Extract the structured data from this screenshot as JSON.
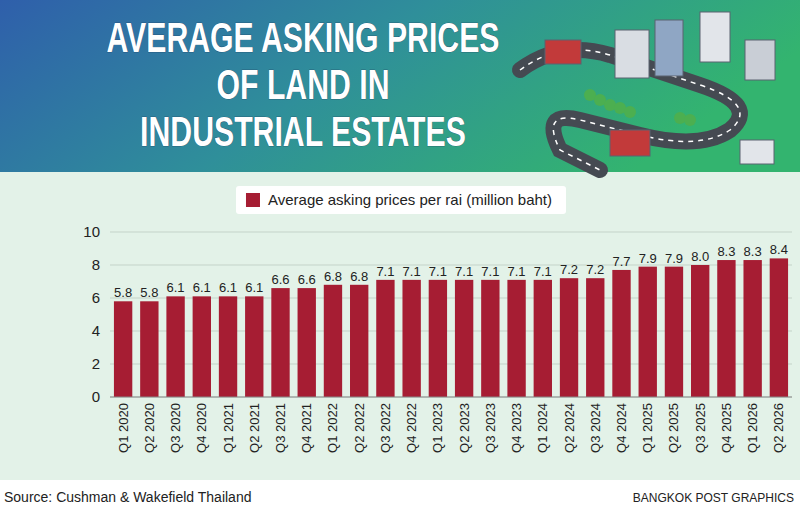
{
  "chart_data": {
    "type": "bar",
    "title": [
      "AVERAGE ASKING PRICES",
      "OF LAND IN",
      "INDUSTRIAL ESTATES"
    ],
    "categories": [
      "Q1 2020",
      "Q2 2020",
      "Q3 2020",
      "Q4 2020",
      "Q1 2021",
      "Q2 2021",
      "Q3 2021",
      "Q4 2021",
      "Q1 2022",
      "Q2 2022",
      "Q3 2022",
      "Q4 2022",
      "Q1 2023",
      "Q2 2023",
      "Q3 2023",
      "Q4 2023",
      "Q1 2024",
      "Q2 2024",
      "Q3 2024",
      "Q4 2024",
      "Q1 2025",
      "Q2 2025",
      "Q3 2025",
      "Q4 2025",
      "Q1 2026",
      "Q2 2026"
    ],
    "series": [
      {
        "name": "Average asking prices per rai (million baht)",
        "color": "#a61d33",
        "values": [
          5.8,
          5.8,
          6.1,
          6.1,
          6.1,
          6.1,
          6.6,
          6.6,
          6.8,
          6.8,
          7.1,
          7.1,
          7.1,
          7.1,
          7.1,
          7.1,
          7.1,
          7.2,
          7.2,
          7.7,
          7.9,
          7.9,
          8.0,
          8.3,
          8.3,
          8.4
        ],
        "value_labels": [
          "5.8",
          "5.8",
          "6.1",
          "6.1",
          "6.1",
          "6.1",
          "6.6",
          "6.6",
          "6.8",
          "6.8",
          "7.1",
          "7.1",
          "7.1",
          "7.1",
          "7.1",
          "7.1",
          "7.1",
          "7.2",
          "7.2",
          "7.7",
          "7.9",
          "7.9",
          "8.0",
          "8.3",
          "8.3",
          "8.4"
        ]
      }
    ],
    "ylim": [
      0,
      10
    ],
    "yticks": [
      0,
      2,
      4,
      6,
      8,
      10
    ],
    "grid": true,
    "legend": "top",
    "data_labels": true,
    "source": "Source: Cushman & Wakefield Thailand",
    "credit": "BANGKOK POST GRAPHICS"
  }
}
